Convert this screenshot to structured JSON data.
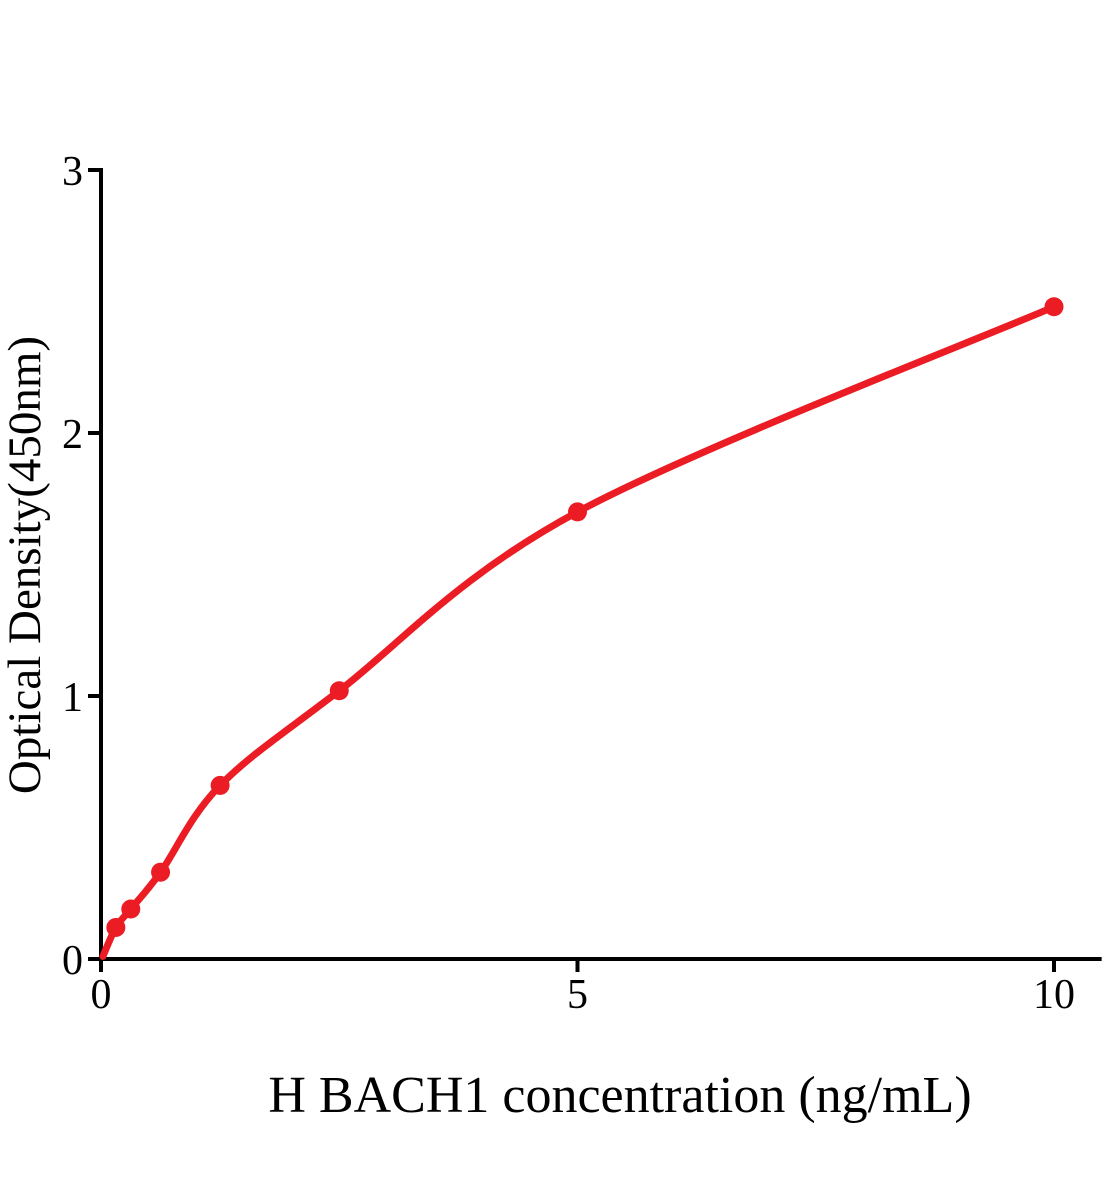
{
  "chart_data": {
    "type": "scatter",
    "title": "",
    "xlabel": "H BACH1 concentration (ng/mL)",
    "ylabel": "Optical Density(450nm)",
    "x": [
      0.156,
      0.3125,
      0.625,
      1.25,
      2.5,
      5,
      10
    ],
    "y": [
      0.12,
      0.19,
      0.33,
      0.66,
      1.02,
      1.7,
      2.48
    ],
    "curve_start": {
      "x": 0.02,
      "y": 0.01
    },
    "xlim": [
      0,
      10.5
    ],
    "ylim": [
      0,
      3
    ],
    "x_ticks": [
      {
        "value": 0,
        "label": "0"
      },
      {
        "value": 5,
        "label": "5"
      },
      {
        "value": 10,
        "label": "10"
      }
    ],
    "y_ticks": [
      {
        "value": 0,
        "label": "0"
      },
      {
        "value": 1,
        "label": "1"
      },
      {
        "value": 2,
        "label": "2"
      },
      {
        "value": 3,
        "label": "3"
      }
    ],
    "series_color": "#ec1c24",
    "axis_color": "#000000",
    "background_color": "#ffffff",
    "grid": "off",
    "legend": "none",
    "marker_shape": "circle"
  }
}
